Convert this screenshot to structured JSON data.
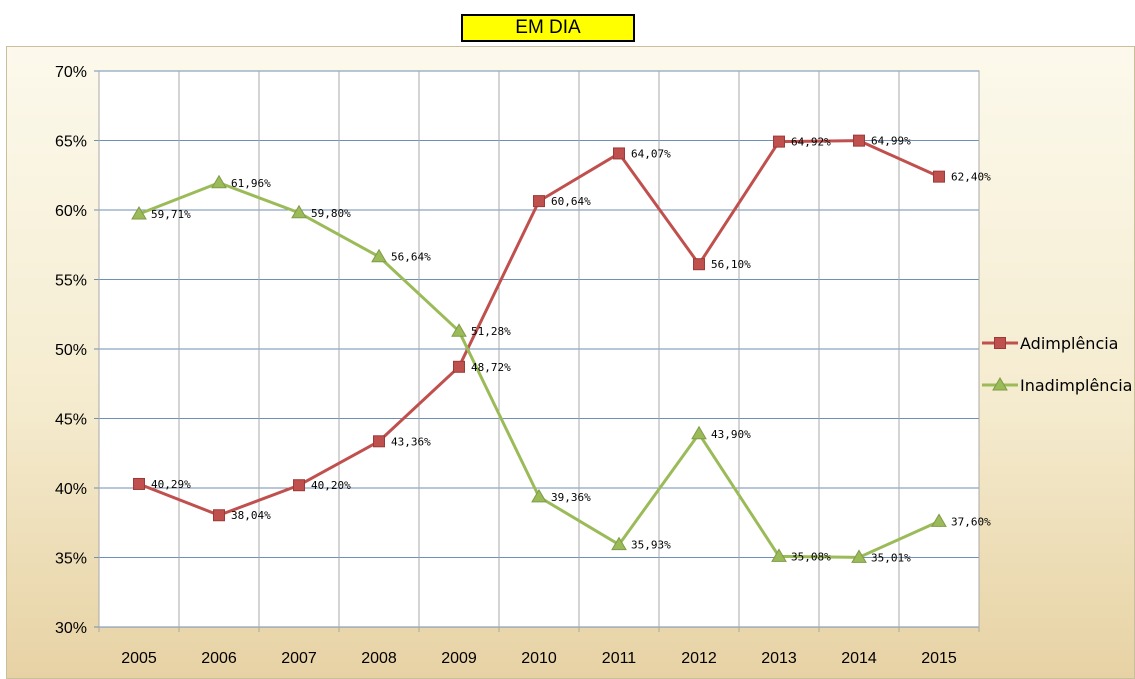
{
  "chart_data": {
    "type": "line",
    "title": "EM DIA",
    "xlabel": "",
    "ylabel": "",
    "categories": [
      "2005",
      "2006",
      "2007",
      "2008",
      "2009",
      "2010",
      "2011",
      "2012",
      "2013",
      "2014",
      "2015"
    ],
    "ylim": [
      0.3,
      0.7
    ],
    "yticks": [
      0.3,
      0.35,
      0.4,
      0.45,
      0.5,
      0.55,
      0.6,
      0.65,
      0.7
    ],
    "ytick_labels": [
      "30%",
      "35%",
      "40%",
      "45%",
      "50%",
      "55%",
      "60%",
      "65%",
      "70%"
    ],
    "grid": true,
    "legend_position": "right",
    "series": [
      {
        "name": "Adimplência",
        "color": "#c0504d",
        "marker": "square",
        "values": [
          0.4029,
          0.3804,
          0.402,
          0.4336,
          0.4872,
          0.6064,
          0.6407,
          0.561,
          0.6492,
          0.6499,
          0.624
        ],
        "labels": [
          "40,29%",
          "38,04%",
          "40,20%",
          "43,36%",
          "48,72%",
          "60,64%",
          "64,07%",
          "56,10%",
          "64,92%",
          "64,99%",
          "62,40%"
        ]
      },
      {
        "name": "Inadimplência",
        "color": "#9bbb59",
        "marker": "triangle",
        "values": [
          0.5971,
          0.6196,
          0.598,
          0.5664,
          0.5128,
          0.3936,
          0.3593,
          0.439,
          0.3508,
          0.3501,
          0.376
        ],
        "labels": [
          "59,71%",
          "61,96%",
          "59,80%",
          "56,64%",
          "51,28%",
          "39,36%",
          "35,93%",
          "43,90%",
          "35,08%",
          "35,01%",
          "37,60%"
        ]
      }
    ]
  }
}
